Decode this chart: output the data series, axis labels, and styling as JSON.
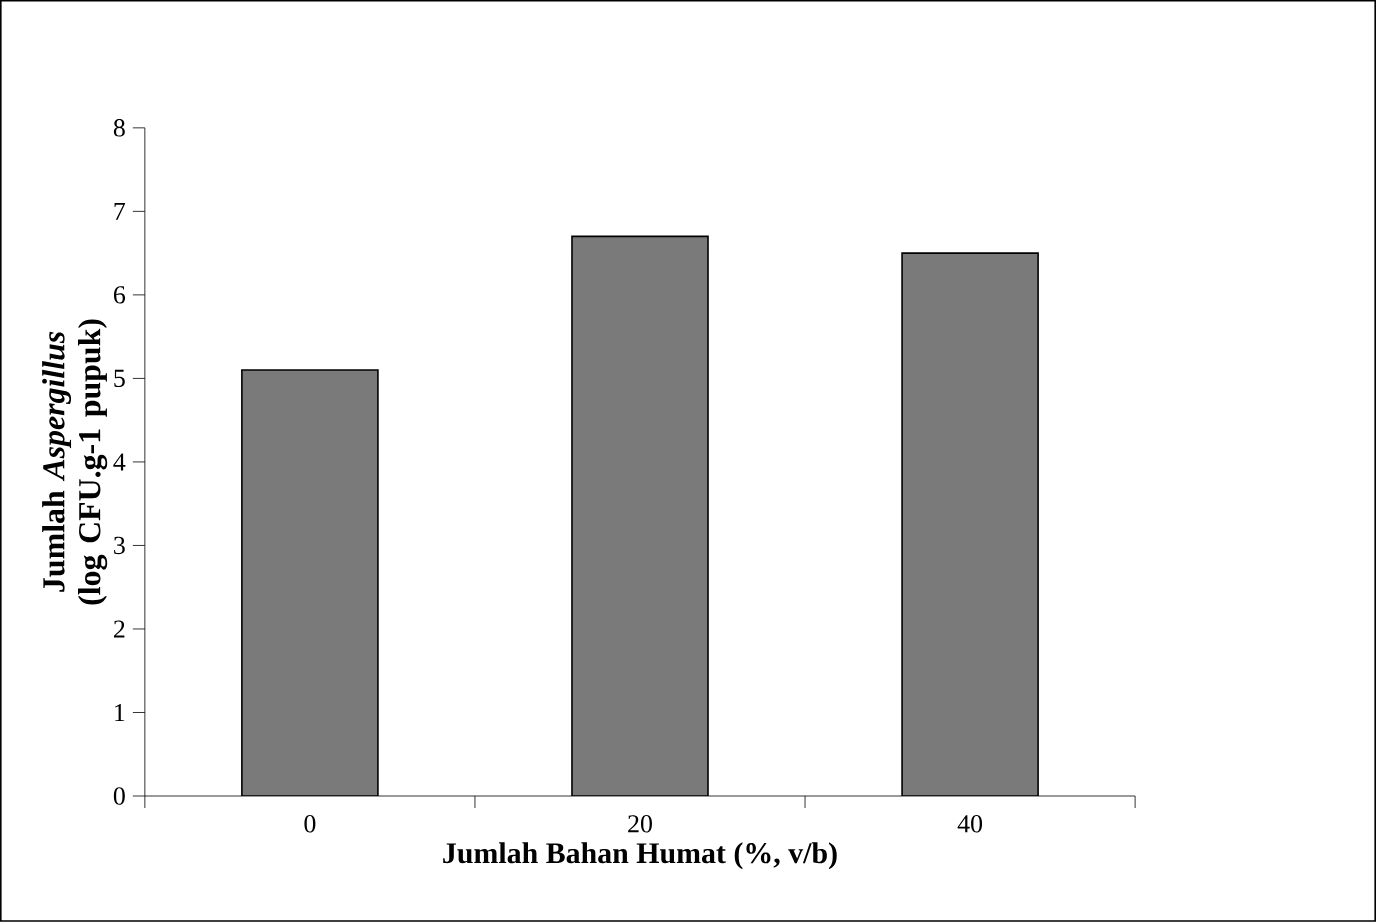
{
  "chart_data": {
    "type": "bar",
    "xlabel": "Jumlah Bahan Humat (%, v/b)",
    "ylabel": "Jumlah *Aspergillus* (log CFU.g-1 pupuk)",
    "categories": [
      "0",
      "20",
      "40"
    ],
    "values": [
      5.1,
      6.7,
      6.5
    ],
    "color": "#7a7a7a",
    "ylim": [
      0,
      8
    ],
    "yticks": [
      0,
      1,
      2,
      3,
      4,
      5,
      6,
      7,
      8
    ],
    "grid": false
  }
}
